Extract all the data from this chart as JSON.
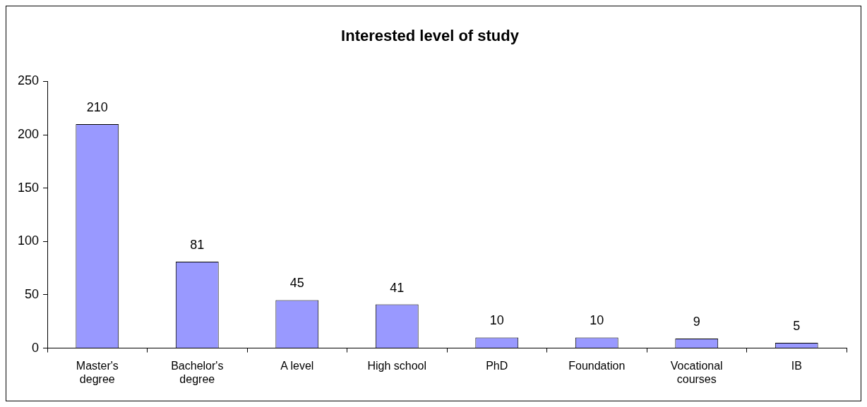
{
  "chart_data": {
    "type": "bar",
    "title": "Interested level of study",
    "categories": [
      "Master's degree",
      "Bachelor's degree",
      "A level",
      "High school",
      "PhD",
      "Foundation",
      "Vocational courses",
      "IB"
    ],
    "values": [
      210,
      81,
      45,
      41,
      10,
      10,
      9,
      5
    ],
    "color": "#9999ff",
    "ylim": [
      0,
      250
    ],
    "yticks": [
      0,
      50,
      100,
      150,
      200,
      250
    ],
    "grid": false,
    "legend": false,
    "data_labels": true
  }
}
